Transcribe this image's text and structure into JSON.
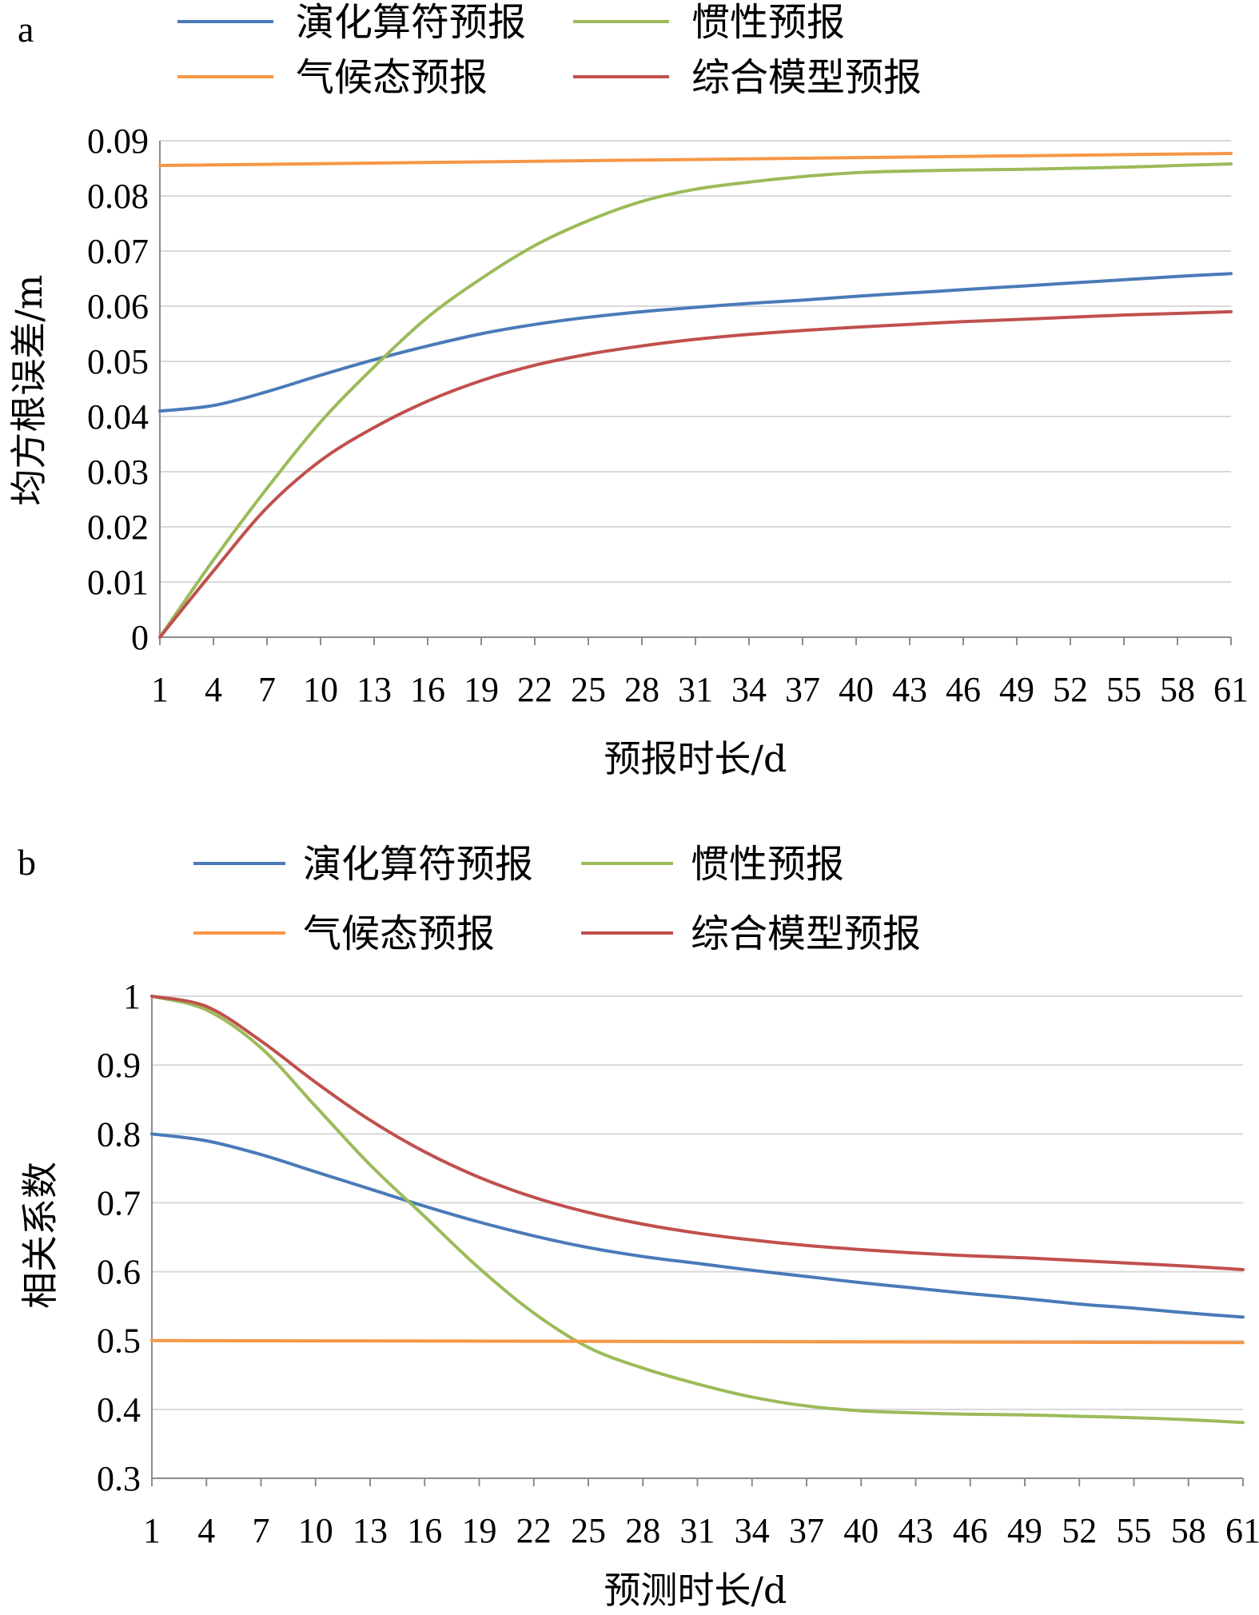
{
  "chart_data": [
    {
      "panel_label": "a",
      "type": "line",
      "xlabel": "预报时长/d",
      "ylabel": "均方根误差/m",
      "xlim": [
        1,
        61
      ],
      "ylim": [
        0,
        0.09
      ],
      "xticks": [
        "1",
        "4",
        "7",
        "10",
        "13",
        "16",
        "19",
        "22",
        "25",
        "28",
        "31",
        "34",
        "37",
        "40",
        "43",
        "46",
        "49",
        "52",
        "55",
        "58",
        "61"
      ],
      "yticks": [
        "0",
        "0.01",
        "0.02",
        "0.03",
        "0.04",
        "0.05",
        "0.06",
        "0.07",
        "0.08",
        "0.09"
      ],
      "grid": "horizontal",
      "legend_position": "top",
      "series": [
        {
          "name": "演化算符预报",
          "color": "#4a7ab8",
          "x": [
            1,
            4,
            7,
            10,
            13,
            16,
            19,
            22,
            25,
            28,
            31,
            34,
            37,
            40,
            43,
            46,
            49,
            52,
            55,
            58,
            61
          ],
          "y": [
            0.041,
            0.042,
            0.0445,
            0.0475,
            0.0503,
            0.0528,
            0.055,
            0.0567,
            0.058,
            0.059,
            0.0598,
            0.0605,
            0.0611,
            0.0618,
            0.0624,
            0.063,
            0.0636,
            0.0642,
            0.0648,
            0.0654,
            0.0659
          ]
        },
        {
          "name": "惯性预报",
          "color": "#9bbb59",
          "x": [
            1,
            4,
            7,
            10,
            13,
            16,
            19,
            22,
            25,
            28,
            31,
            34,
            37,
            40,
            43,
            46,
            49,
            52,
            55,
            58,
            61
          ],
          "y": [
            0.0,
            0.014,
            0.027,
            0.039,
            0.049,
            0.058,
            0.065,
            0.071,
            0.0755,
            0.079,
            0.0812,
            0.0825,
            0.0835,
            0.0842,
            0.0845,
            0.0847,
            0.0848,
            0.085,
            0.0852,
            0.0855,
            0.0858
          ]
        },
        {
          "name": "气候态预报",
          "color": "#f79646",
          "x": [
            1,
            61
          ],
          "y": [
            0.0855,
            0.0877
          ]
        },
        {
          "name": "综合模型预报",
          "color": "#c0504d",
          "x": [
            1,
            4,
            7,
            10,
            13,
            16,
            19,
            22,
            25,
            28,
            31,
            34,
            37,
            40,
            43,
            46,
            49,
            52,
            55,
            58,
            61
          ],
          "y": [
            0.0,
            0.012,
            0.0235,
            0.032,
            0.038,
            0.0428,
            0.0465,
            0.0493,
            0.0513,
            0.0528,
            0.054,
            0.0549,
            0.0556,
            0.0562,
            0.0567,
            0.0572,
            0.0576,
            0.058,
            0.0584,
            0.0587,
            0.059
          ]
        }
      ]
    },
    {
      "panel_label": "b",
      "type": "line",
      "xlabel": "预测时长/d",
      "ylabel": "相关系数",
      "xlim": [
        1,
        61
      ],
      "ylim": [
        0.3,
        1
      ],
      "xticks": [
        "1",
        "4",
        "7",
        "10",
        "13",
        "16",
        "19",
        "22",
        "25",
        "28",
        "31",
        "34",
        "37",
        "40",
        "43",
        "46",
        "49",
        "52",
        "55",
        "58",
        "61"
      ],
      "yticks": [
        "0.3",
        "0.4",
        "0.5",
        "0.6",
        "0.7",
        "0.8",
        "0.9",
        "1"
      ],
      "grid": "horizontal",
      "legend_position": "top",
      "series": [
        {
          "name": "演化算符预报",
          "color": "#4a7ab8",
          "x": [
            1,
            4,
            7,
            10,
            13,
            16,
            19,
            22,
            25,
            28,
            31,
            34,
            37,
            40,
            43,
            46,
            49,
            52,
            55,
            58,
            61
          ],
          "y": [
            0.8,
            0.79,
            0.77,
            0.745,
            0.72,
            0.695,
            0.672,
            0.652,
            0.635,
            0.622,
            0.612,
            0.602,
            0.593,
            0.584,
            0.576,
            0.568,
            0.561,
            0.553,
            0.547,
            0.54,
            0.534
          ]
        },
        {
          "name": "惯性预报",
          "color": "#9bbb59",
          "x": [
            1,
            4,
            7,
            10,
            13,
            16,
            19,
            22,
            25,
            28,
            31,
            34,
            37,
            40,
            43,
            46,
            49,
            52,
            55,
            58,
            61
          ],
          "y": [
            1.0,
            0.98,
            0.925,
            0.84,
            0.755,
            0.68,
            0.605,
            0.54,
            0.49,
            0.46,
            0.437,
            0.418,
            0.405,
            0.398,
            0.395,
            0.393,
            0.392,
            0.39,
            0.388,
            0.385,
            0.381
          ]
        },
        {
          "name": "气候态预报",
          "color": "#f79646",
          "x": [
            1,
            61
          ],
          "y": [
            0.5,
            0.497
          ]
        },
        {
          "name": "综合模型预报",
          "color": "#c0504d",
          "x": [
            1,
            4,
            7,
            10,
            13,
            16,
            19,
            22,
            25,
            28,
            31,
            34,
            37,
            40,
            43,
            46,
            49,
            52,
            55,
            58,
            61
          ],
          "y": [
            1.0,
            0.985,
            0.935,
            0.875,
            0.82,
            0.774,
            0.737,
            0.708,
            0.686,
            0.669,
            0.656,
            0.646,
            0.638,
            0.632,
            0.627,
            0.623,
            0.62,
            0.616,
            0.612,
            0.608,
            0.603
          ]
        }
      ]
    }
  ]
}
